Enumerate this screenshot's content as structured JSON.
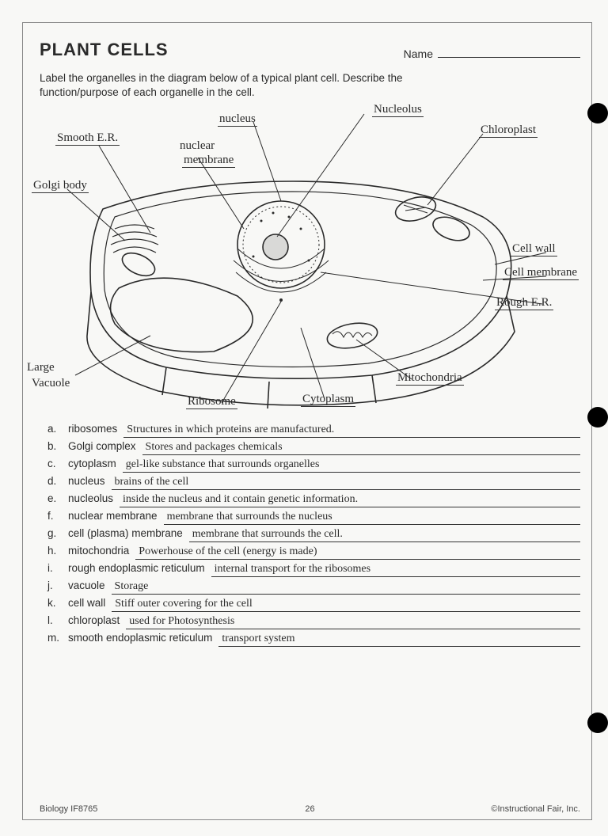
{
  "title": "PLANT CELLS",
  "name_label": "Name",
  "intro": "Label the organelles in the diagram below of a typical plant cell. Describe the function/purpose of each organelle in the cell.",
  "labels": {
    "nucleus": "nucleus",
    "nucleolus": "Nucleolus",
    "chloroplast": "Chloroplast",
    "smooth_er": "Smooth E.R.",
    "nuclear_membrane_1": "nuclear",
    "nuclear_membrane_2": "membrane",
    "golgi": "Golgi body",
    "cell_wall": "Cell wall",
    "cell_membrane": "Cell membrane",
    "rough_er": "Rough E.R.",
    "large_vacuole_1": "Large",
    "large_vacuole_2": "Vacuole",
    "ribosome": "Ribosome",
    "cytoplasm": "Cytoplasm",
    "mitochondria": "Mitochondria"
  },
  "definitions": [
    {
      "letter": "a.",
      "term": "ribosomes",
      "answer": "Structures in which proteins are manufactured."
    },
    {
      "letter": "b.",
      "term": "Golgi complex",
      "answer": "Stores and packages chemicals"
    },
    {
      "letter": "c.",
      "term": "cytoplasm",
      "answer": "gel-like substance that surrounds organelles"
    },
    {
      "letter": "d.",
      "term": "nucleus",
      "answer": "brains of the cell"
    },
    {
      "letter": "e.",
      "term": "nucleolus",
      "answer": "inside the nucleus and it contain genetic information."
    },
    {
      "letter": "f.",
      "term": "nuclear membrane",
      "answer": "membrane that surrounds the nucleus"
    },
    {
      "letter": "g.",
      "term": "cell (plasma) membrane",
      "answer": "membrane that surrounds the cell."
    },
    {
      "letter": "h.",
      "term": "mitochondria",
      "answer": "Powerhouse of the cell (energy is made)"
    },
    {
      "letter": "i.",
      "term": "rough endoplasmic reticulum",
      "answer": "internal transport for the ribosomes"
    },
    {
      "letter": "j.",
      "term": "vacuole",
      "answer": "Storage"
    },
    {
      "letter": "k.",
      "term": "cell wall",
      "answer": "Stiff outer covering for the cell"
    },
    {
      "letter": "l.",
      "term": "chloroplast",
      "answer": "used for Photosynthesis"
    },
    {
      "letter": "m.",
      "term": "smooth endoplasmic reticulum",
      "answer": "transport system"
    }
  ],
  "footer": {
    "left": "Biology IF8765",
    "page": "26",
    "right": "©Instructional Fair, Inc."
  },
  "colors": {
    "text": "#2a2a2a",
    "line": "#333333",
    "bg": "#f8f8f6"
  }
}
